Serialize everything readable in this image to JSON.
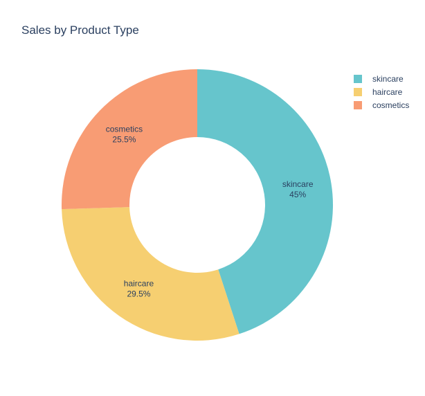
{
  "chart_data": {
    "type": "pie",
    "hole": true,
    "title": "Sales by Product Type",
    "categories": [
      "skincare",
      "haircare",
      "cosmetics"
    ],
    "values": [
      45,
      29.5,
      25.5
    ],
    "labels": [
      "45%",
      "29.5%",
      "25.5%"
    ],
    "colors": [
      "#66c5cc",
      "#f6cf71",
      "#f89c74"
    ],
    "legend_position": "top-right"
  }
}
